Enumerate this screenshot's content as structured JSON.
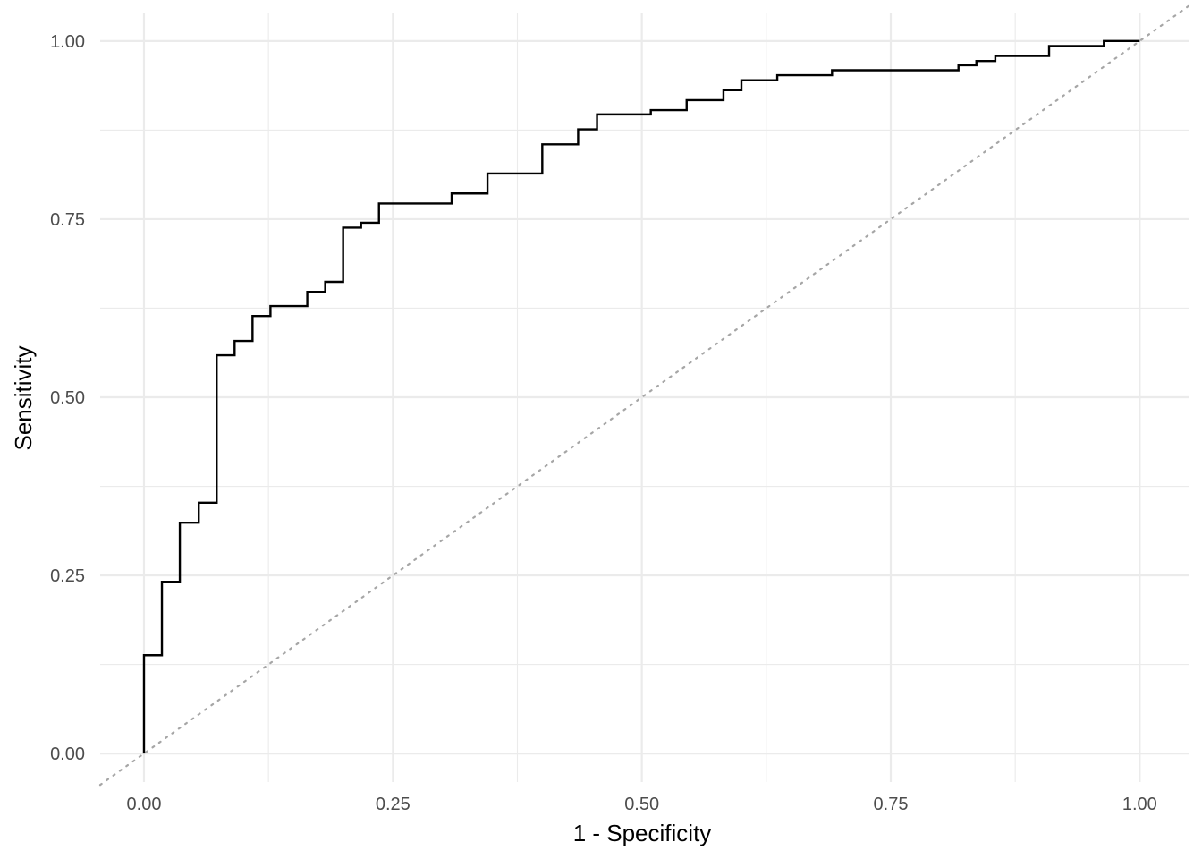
{
  "chart_data": {
    "type": "line",
    "title": "",
    "xlabel": "1 - Specificity",
    "ylabel": "Sensitivity",
    "xlim": [
      -0.044,
      1.05
    ],
    "ylim": [
      -0.04,
      1.04
    ],
    "x_ticks": [
      0,
      0.25,
      0.5,
      0.75,
      1
    ],
    "x_tick_labels": [
      "0.00",
      "0.25",
      "0.50",
      "0.75",
      "1.00"
    ],
    "y_ticks": [
      0,
      0.25,
      0.5,
      0.75,
      1
    ],
    "y_tick_labels": [
      "0.00",
      "0.25",
      "0.50",
      "0.75",
      "1.00"
    ],
    "grid": true,
    "grid_color": "#ebebeb",
    "line_color": "#000000",
    "diagonal_color": "#a6a6a6",
    "series": [
      {
        "step": "hv",
        "x": [
          0,
          0,
          0.018,
          0.036,
          0.055,
          0.073,
          0.091,
          0.109,
          0.127,
          0.164,
          0.182,
          0.2,
          0.218,
          0.236,
          0.309,
          0.345,
          0.4,
          0.436,
          0.455,
          0.509,
          0.545,
          0.582,
          0.6,
          0.636,
          0.691,
          0.818,
          0.836,
          0.855,
          0.909,
          0.964,
          1.0
        ],
        "y": [
          0,
          0.138,
          0.241,
          0.324,
          0.352,
          0.559,
          0.579,
          0.614,
          0.628,
          0.648,
          0.662,
          0.738,
          0.745,
          0.772,
          0.786,
          0.814,
          0.855,
          0.876,
          0.897,
          0.903,
          0.917,
          0.931,
          0.945,
          0.952,
          0.959,
          0.966,
          0.972,
          0.979,
          0.993,
          1.0,
          1.0
        ]
      }
    ],
    "reference_line": {
      "x": [
        -0.044,
        1.05
      ],
      "y": [
        -0.044,
        1.05
      ]
    }
  }
}
